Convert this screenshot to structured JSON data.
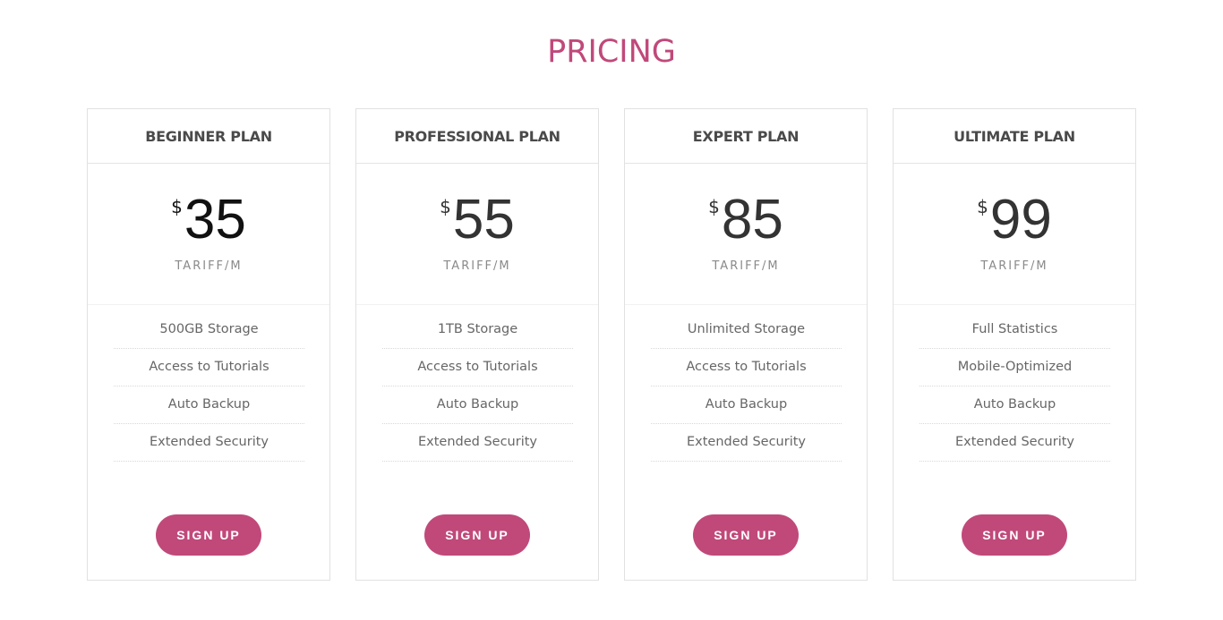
{
  "title": "PRICING",
  "accent_color": "#c0497a",
  "plans": [
    {
      "name": "BEGINNER PLAN",
      "currency": "$",
      "price": "35",
      "period": "TARIFF/M",
      "features": [
        "500GB Storage",
        "Access to Tutorials",
        "Auto Backup",
        "Extended Security"
      ],
      "cta": "SIGN UP"
    },
    {
      "name": "PROFESSIONAL PLAN",
      "currency": "$",
      "price": "55",
      "period": "TARIFF/M",
      "features": [
        "1TB Storage",
        "Access to Tutorials",
        "Auto Backup",
        "Extended Security"
      ],
      "cta": "SIGN UP"
    },
    {
      "name": "EXPERT PLAN",
      "currency": "$",
      "price": "85",
      "period": "TARIFF/M",
      "features": [
        "Unlimited Storage",
        "Access to Tutorials",
        "Auto Backup",
        "Extended Security"
      ],
      "cta": "SIGN UP"
    },
    {
      "name": "ULTIMATE PLAN",
      "currency": "$",
      "price": "99",
      "period": "TARIFF/M",
      "features": [
        "Full Statistics",
        "Mobile-Optimized",
        "Auto Backup",
        "Extended Security"
      ],
      "cta": "SIGN UP"
    }
  ]
}
